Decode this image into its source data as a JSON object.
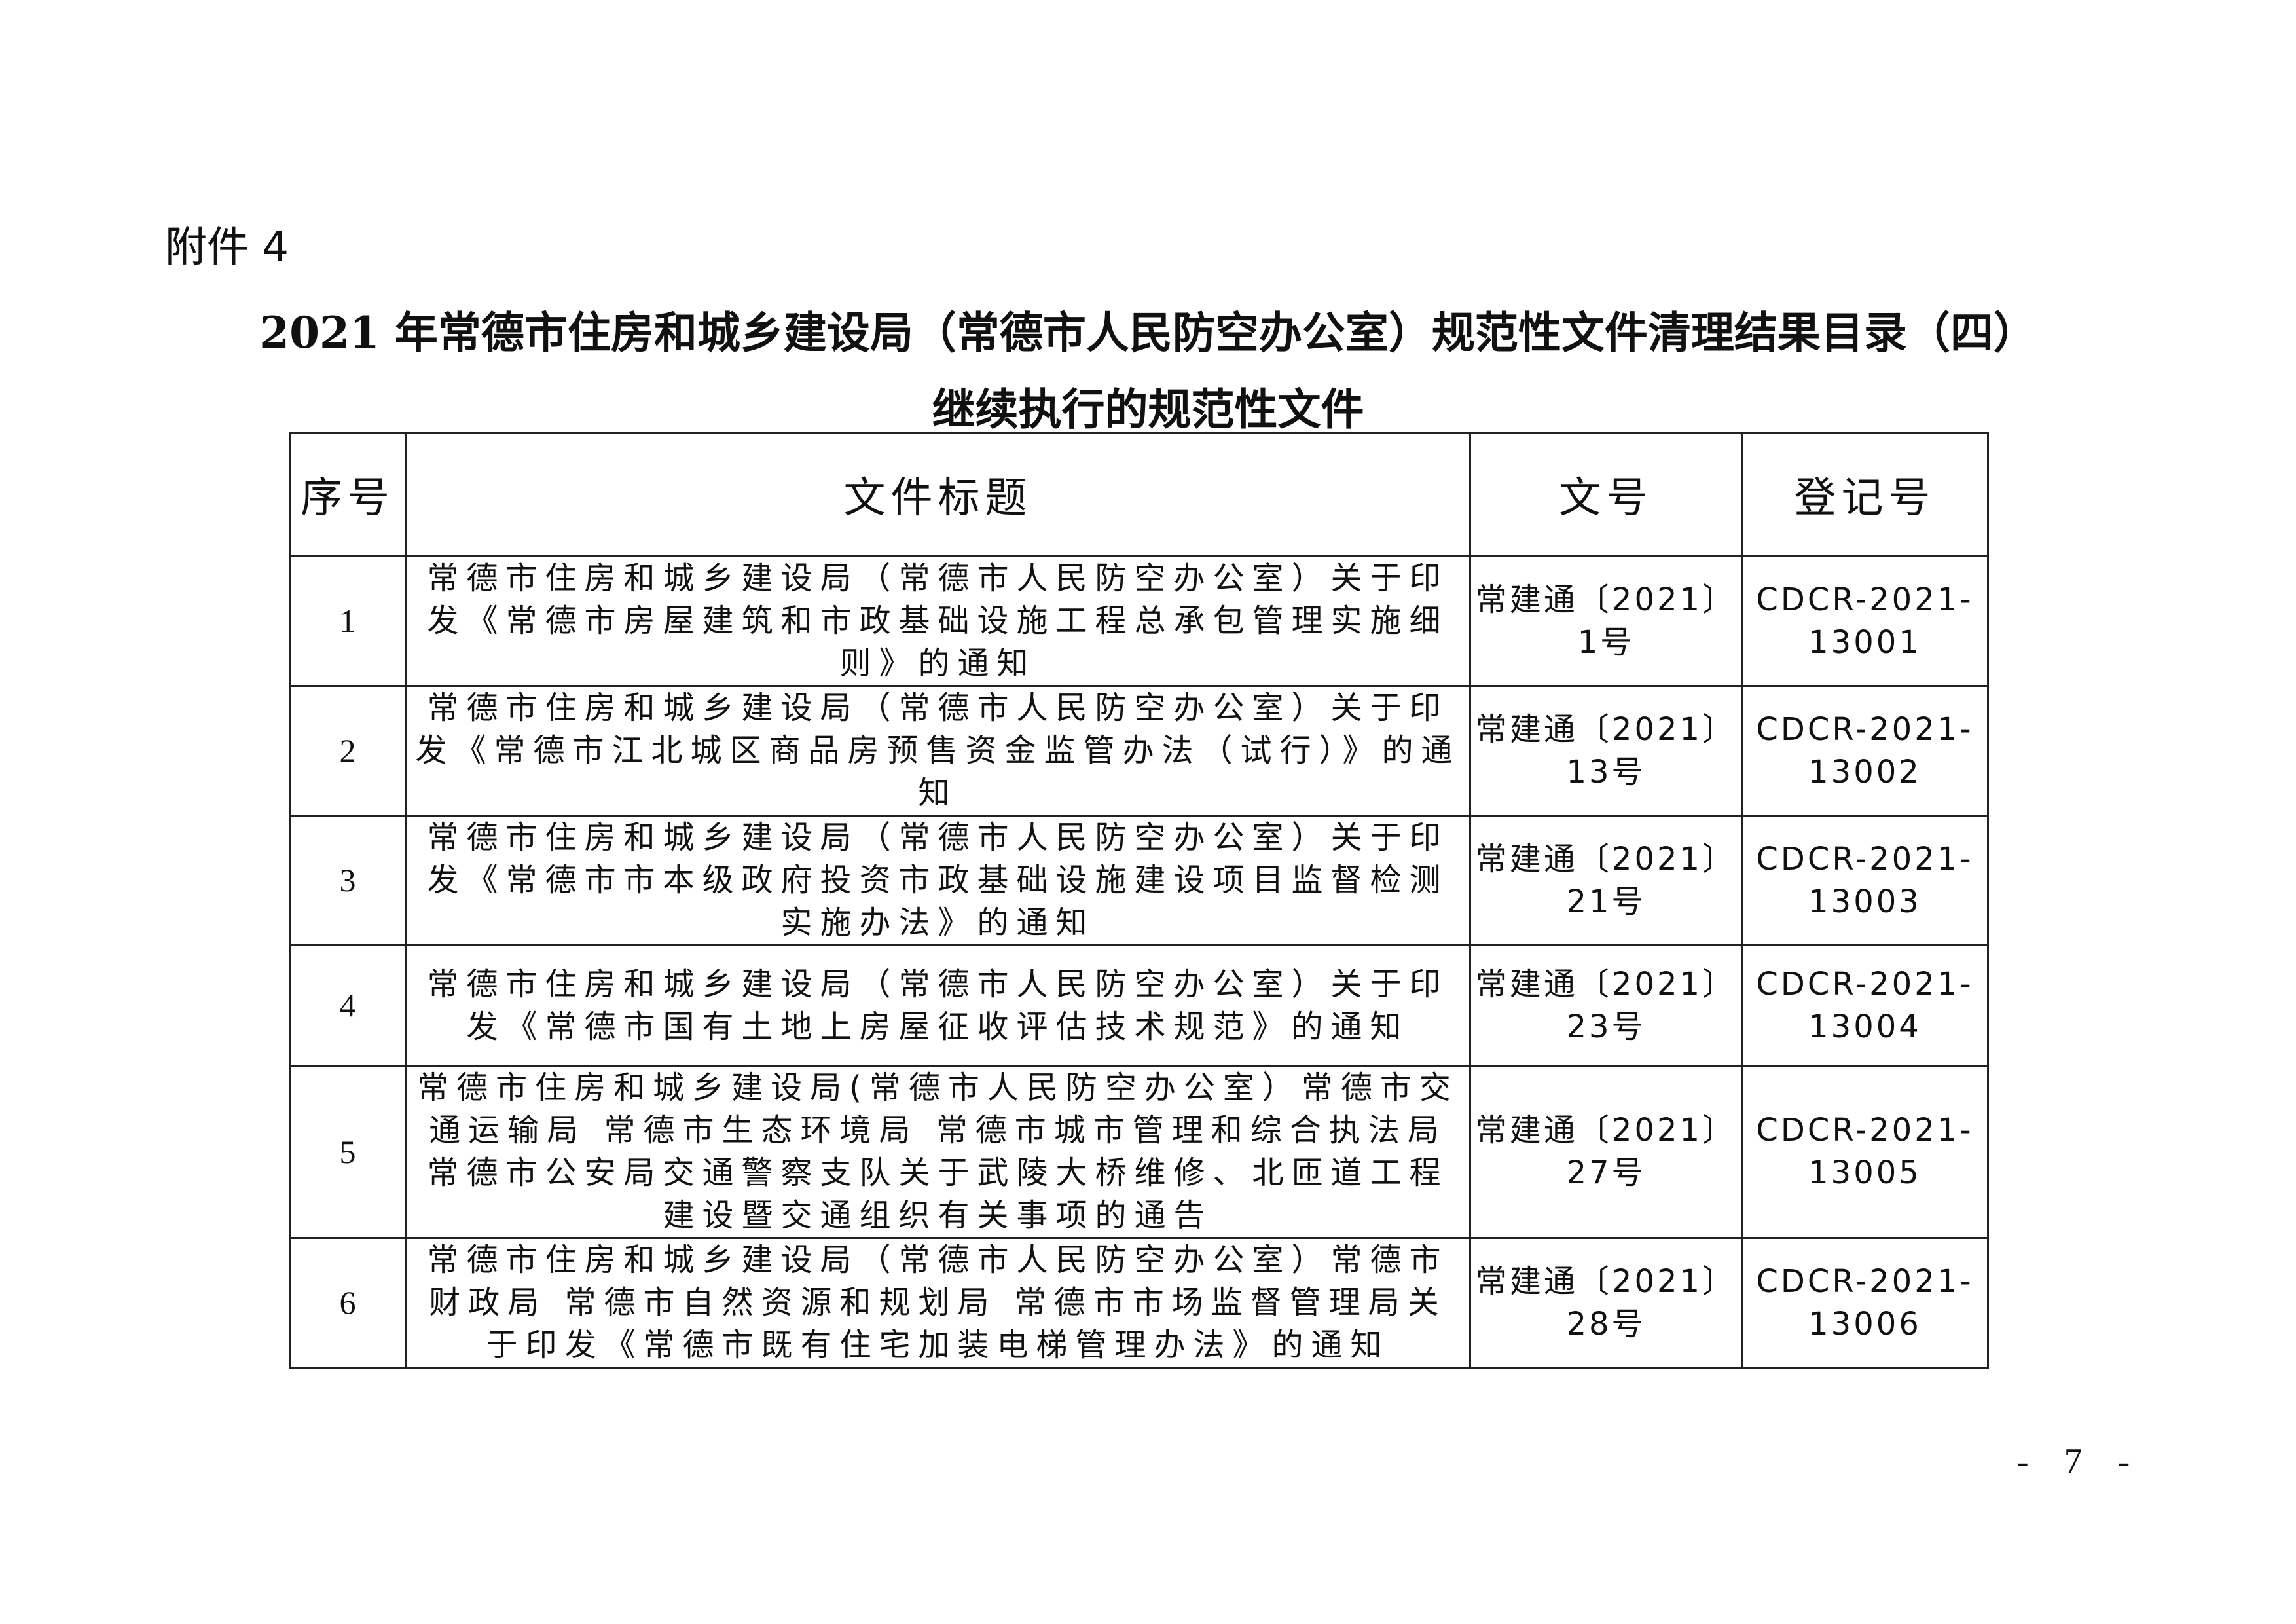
{
  "attachment_label": "附件 4",
  "title_line1": "2021 年常德市住房和城乡建设局（常德市人民防空办公室）规范性文件清理结果目录（四）",
  "title_line2": "继续执行的规范性文件",
  "table": {
    "headers": [
      "序号",
      "文件标题",
      "文号",
      "登记号"
    ],
    "rows": [
      {
        "no": "1",
        "title": "常德市住房和城乡建设局（常德市人民防空办公室）关于印发《常德市房屋建筑和市政基础设施工程总承包管理实施细则》的通知",
        "doc_no": "常建通〔2021〕1号",
        "reg_no": "CDCR-2021-13001"
      },
      {
        "no": "2",
        "title": "常德市住房和城乡建设局（常德市人民防空办公室）关于印发《常德市江北城区商品房预售资金监管办法（试行）》的通知",
        "doc_no": "常建通〔2021〕13号",
        "reg_no": "CDCR-2021-13002"
      },
      {
        "no": "3",
        "title": "常德市住房和城乡建设局（常德市人民防空办公室）关于印发《常德市市本级政府投资市政基础设施建设项目监督检测实施办法》的通知",
        "doc_no": "常建通〔2021〕21号",
        "reg_no": "CDCR-2021-13003"
      },
      {
        "no": "4",
        "title": "常德市住房和城乡建设局（常德市人民防空办公室）关于印发《常德市国有土地上房屋征收评估技术规范》的通知",
        "doc_no": "常建通〔2021〕23号",
        "reg_no": "CDCR-2021-13004"
      },
      {
        "no": "5",
        "title": "常德市住房和城乡建设局(常德市人民防空办公室）常德市交通运输局 常德市生态环境局 常德市城市管理和综合执法局 常德市公安局交通警察支队关于武陵大桥维修、北匝道工程建设暨交通组织有关事项的通告",
        "doc_no": "常建通〔2021〕27号",
        "reg_no": "CDCR-2021-13005"
      },
      {
        "no": "6",
        "title": "常德市住房和城乡建设局（常德市人民防空办公室）常德市财政局 常德市自然资源和规划局 常德市市场监督管理局关于印发《常德市既有住宅加装电梯管理办法》的通知",
        "doc_no": "常建通〔2021〕28号",
        "reg_no": "CDCR-2021-13006"
      }
    ]
  },
  "page_number": "- 7 -"
}
